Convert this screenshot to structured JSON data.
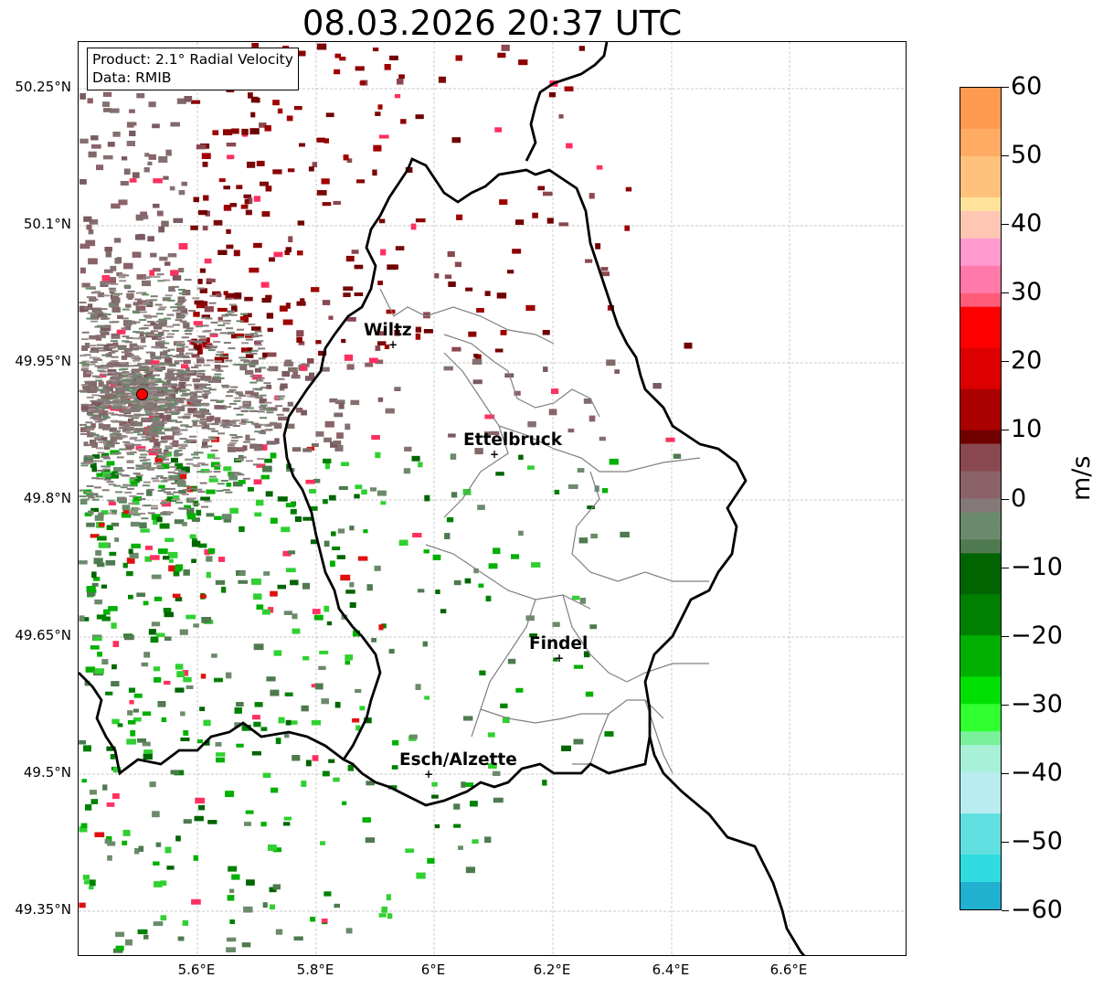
{
  "title": "08.03.2026 20:37 UTC",
  "product_box": {
    "line1": "Product: 2.1° Radial Velocity",
    "line2": "Data: RMIB"
  },
  "lat_labels": [
    "50.25°N",
    "50.1°N",
    "49.95°N",
    "49.8°N",
    "49.65°N",
    "49.5°N",
    "49.35°N"
  ],
  "lon_labels": [
    "5.6°E",
    "5.8°E",
    "6°E",
    "6.2°E",
    "6.4°E",
    "6.6°E"
  ],
  "cities": [
    {
      "name": "Wiltz"
    },
    {
      "name": "Ettelbruck"
    },
    {
      "name": "Findel"
    },
    {
      "name": "Esch/Alzette"
    }
  ],
  "colorbar": {
    "unit": "m/s",
    "ticks": [
      "60",
      "50",
      "40",
      "30",
      "20",
      "10",
      "0",
      "−10",
      "−20",
      "−30",
      "−40",
      "−50",
      "−60"
    ],
    "range": [
      -60,
      60
    ]
  },
  "colors": {
    "border_line": "#000000",
    "canton_line": "#808080",
    "grid_line": "#b0b0b0",
    "radar_site": "#ff0000"
  }
}
